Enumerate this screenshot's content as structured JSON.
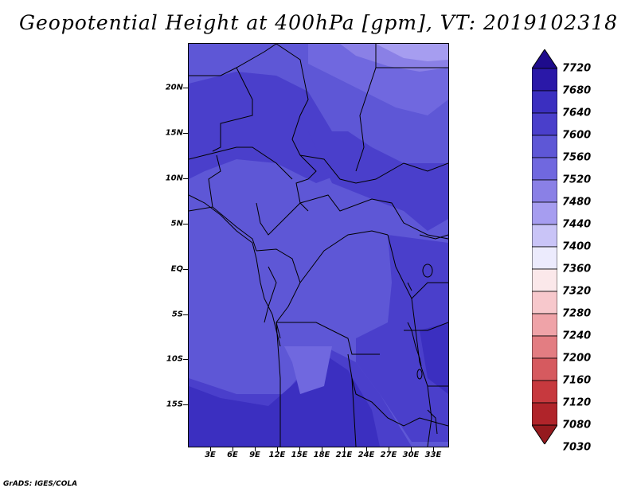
{
  "title": "Geopotential Height at 400hPa [gpm], VT: 2019102318",
  "credit": "GrADS: IGES/COLA",
  "map": {
    "lat_labels": [
      "20N",
      "15N",
      "10N",
      "5N",
      "EQ",
      "5S",
      "10S",
      "15S"
    ],
    "lon_labels": [
      "3E",
      "6E",
      "9E",
      "12E",
      "15E",
      "18E",
      "21E",
      "24E",
      "27E",
      "30E",
      "33E"
    ],
    "shading_dominant_range": "7560-7640"
  },
  "colorbar": {
    "labels": [
      "7720",
      "7680",
      "7640",
      "7600",
      "7560",
      "7520",
      "7480",
      "7440",
      "7400",
      "7360",
      "7320",
      "7280",
      "7240",
      "7200",
      "7160",
      "7120",
      "7080",
      "7030"
    ],
    "colors": [
      "#1e0b8c",
      "#2a18a8",
      "#3b2fc0",
      "#4a3fcb",
      "#5e57d6",
      "#7068df",
      "#8a80e6",
      "#a69df0",
      "#c9c4f7",
      "#ecebfd",
      "#fbe8ea",
      "#f7c8cc",
      "#efa3a8",
      "#e37d82",
      "#d65a5f",
      "#c7393e",
      "#b0242a",
      "#951a1e"
    ],
    "top_color": "#1e0b8c",
    "bottom_color": "#951a1e"
  }
}
